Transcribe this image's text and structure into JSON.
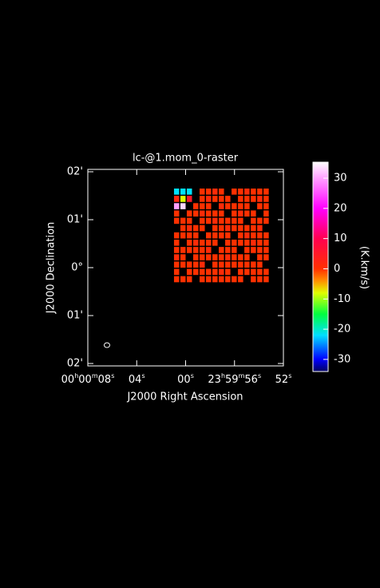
{
  "chart_data": {
    "type": "raster",
    "title": "lc-@1.mom_0-raster",
    "xlabel": "J2000 Right Ascension",
    "ylabel": "J2000 Declination",
    "xlim": [
      8,
      -8
    ],
    "ylim": [
      -2.05,
      2.05
    ],
    "xticks": [
      {
        "value": 8,
        "label": "00h00m08s"
      },
      {
        "value": 4,
        "label": "04s"
      },
      {
        "value": 0,
        "label": "00s"
      },
      {
        "value": -4,
        "label": "23h59m56s"
      },
      {
        "value": -8,
        "label": "52s"
      }
    ],
    "yticks": [
      {
        "value": 2,
        "label": "02'"
      },
      {
        "value": 1,
        "label": "01'"
      },
      {
        "value": 0,
        "label": "0°"
      },
      {
        "value": -1,
        "label": "01'"
      },
      {
        "value": -2,
        "label": "02'"
      }
    ],
    "x_extent": [
      0.95,
      -6.9
    ],
    "y_extent": [
      1.65,
      -0.33
    ],
    "z": [
      [
        -22,
        -22,
        -22,
        null,
        0,
        0,
        1,
        0,
        null,
        0,
        0,
        1,
        0,
        0,
        0
      ],
      [
        2,
        -8,
        5,
        null,
        0,
        1,
        0,
        0,
        0,
        null,
        0,
        0,
        0,
        1,
        0
      ],
      [
        30,
        33,
        null,
        0,
        0,
        0,
        null,
        1,
        0,
        0,
        0,
        0,
        null,
        0,
        0
      ],
      [
        0,
        null,
        0,
        0,
        1,
        0,
        0,
        0,
        null,
        0,
        1,
        0,
        0,
        null,
        0
      ],
      [
        0,
        0,
        0,
        null,
        0,
        0,
        1,
        0,
        0,
        0,
        0,
        null,
        0,
        0,
        0
      ],
      [
        null,
        0,
        1,
        0,
        0,
        null,
        0,
        0,
        1,
        0,
        0,
        0,
        0,
        1,
        null
      ],
      [
        0,
        0,
        0,
        0,
        null,
        0,
        0,
        0,
        0,
        null,
        0,
        1,
        0,
        0,
        0
      ],
      [
        0,
        null,
        0,
        1,
        0,
        0,
        0,
        null,
        0,
        0,
        0,
        0,
        1,
        0,
        0
      ],
      [
        0,
        0,
        0,
        0,
        0,
        1,
        null,
        0,
        0,
        0,
        null,
        0,
        0,
        0,
        0
      ],
      [
        1,
        0,
        null,
        0,
        0,
        0,
        0,
        0,
        1,
        0,
        0,
        0,
        null,
        0,
        0
      ],
      [
        0,
        0,
        0,
        0,
        1,
        null,
        0,
        0,
        0,
        0,
        0,
        0,
        0,
        0,
        null
      ],
      [
        0,
        null,
        0,
        0,
        0,
        0,
        0,
        1,
        0,
        null,
        0,
        0,
        0,
        0,
        0
      ],
      [
        0,
        0,
        0,
        null,
        0,
        0,
        0,
        0,
        0,
        0,
        0,
        null,
        0,
        0,
        0
      ]
    ],
    "colorbar": {
      "label": "(K.km/s)",
      "clim": [
        -34,
        35.3
      ],
      "ticks": [
        30,
        20,
        10,
        0,
        -10,
        -20,
        -30
      ],
      "colormap": [
        {
          "value": -34,
          "color": "#000060"
        },
        {
          "value": -30,
          "color": "#0000ff"
        },
        {
          "value": -22,
          "color": "#00e0ff"
        },
        {
          "value": -15,
          "color": "#00ff40"
        },
        {
          "value": -8,
          "color": "#e0ff00"
        },
        {
          "value": -4,
          "color": "#ff9000"
        },
        {
          "value": 0,
          "color": "#ff3000"
        },
        {
          "value": 10,
          "color": "#ff0050"
        },
        {
          "value": 20,
          "color": "#ff00ff"
        },
        {
          "value": 30,
          "color": "#ffa0ff"
        },
        {
          "value": 35.3,
          "color": "#ffffff"
        }
      ]
    }
  }
}
